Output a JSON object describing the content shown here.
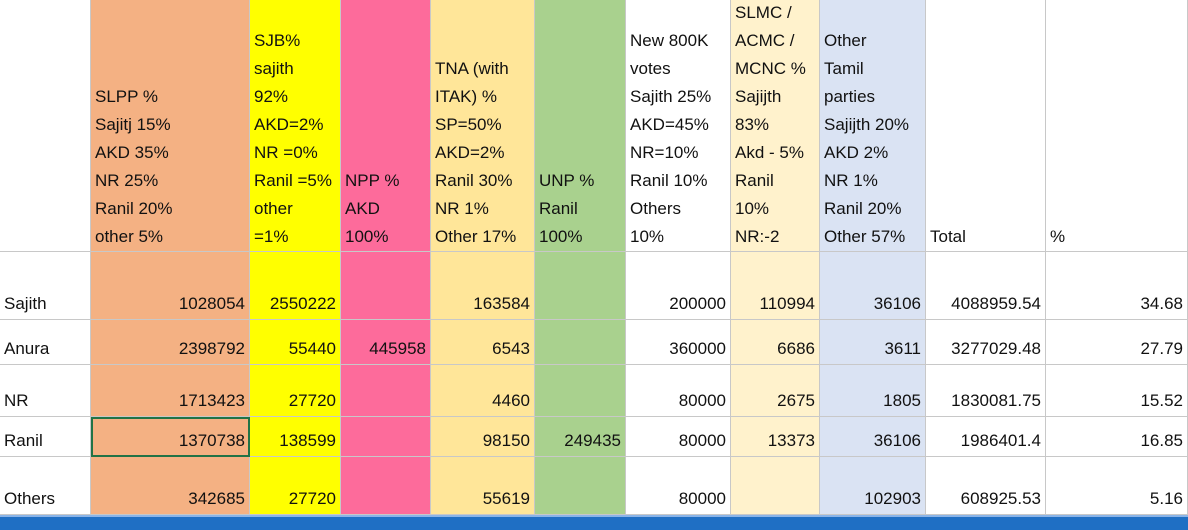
{
  "table": {
    "headers": [
      [
        "SLPP %",
        "Sajitj 15%",
        "AKD 35%",
        "NR 25%",
        "Ranil 20%",
        "other 5%"
      ],
      [
        "SJB%",
        "sajith",
        "92%",
        "AKD=2%",
        "NR =0%",
        "Ranil =5%",
        "other",
        "=1%"
      ],
      [
        "NPP %",
        "AKD",
        "100%"
      ],
      [
        "TNA (with",
        "ITAK) %",
        "SP=50%",
        "AKD=2%",
        "Ranil 30%",
        "NR 1%",
        "Other 17%"
      ],
      [
        "UNP %",
        "Ranil",
        "100%"
      ],
      [
        "New 800K",
        "votes",
        "Sajith 25%",
        "AKD=45%",
        "NR=10%",
        "Ranil 10%",
        "Others",
        "10%"
      ],
      [
        "SLMC /",
        "ACMC /",
        "MCNC %",
        "Sajijth",
        "83%",
        "Akd - 5%",
        "Ranil",
        "10%",
        "NR:-2"
      ],
      [
        "Other",
        "Tamil",
        "parties",
        "Sajijth 20%",
        "AKD 2%",
        "NR 1%",
        "Ranil 20%",
        "Other 57%"
      ],
      [
        "Total"
      ],
      [
        "%"
      ]
    ],
    "rows": [
      {
        "label": "Sajith",
        "cells": [
          1028054,
          2550222,
          null,
          163584,
          null,
          200000,
          110994,
          36106,
          4088959.54,
          34.68
        ]
      },
      {
        "label": "Anura",
        "cells": [
          2398792,
          55440,
          445958,
          6543,
          null,
          360000,
          6686,
          3611,
          3277029.48,
          27.79
        ]
      },
      {
        "label": "NR",
        "cells": [
          1713423,
          27720,
          null,
          4460,
          null,
          80000,
          2675,
          1805,
          1830081.75,
          15.52
        ]
      },
      {
        "label": "Ranil",
        "cells": [
          1370738,
          138599,
          null,
          98150,
          249435,
          80000,
          13373,
          36106,
          1986401.4,
          16.85
        ]
      },
      {
        "label": "Others",
        "cells": [
          342685,
          27720,
          null,
          55619,
          null,
          80000,
          null,
          102903,
          608925.53,
          5.16
        ]
      }
    ]
  }
}
